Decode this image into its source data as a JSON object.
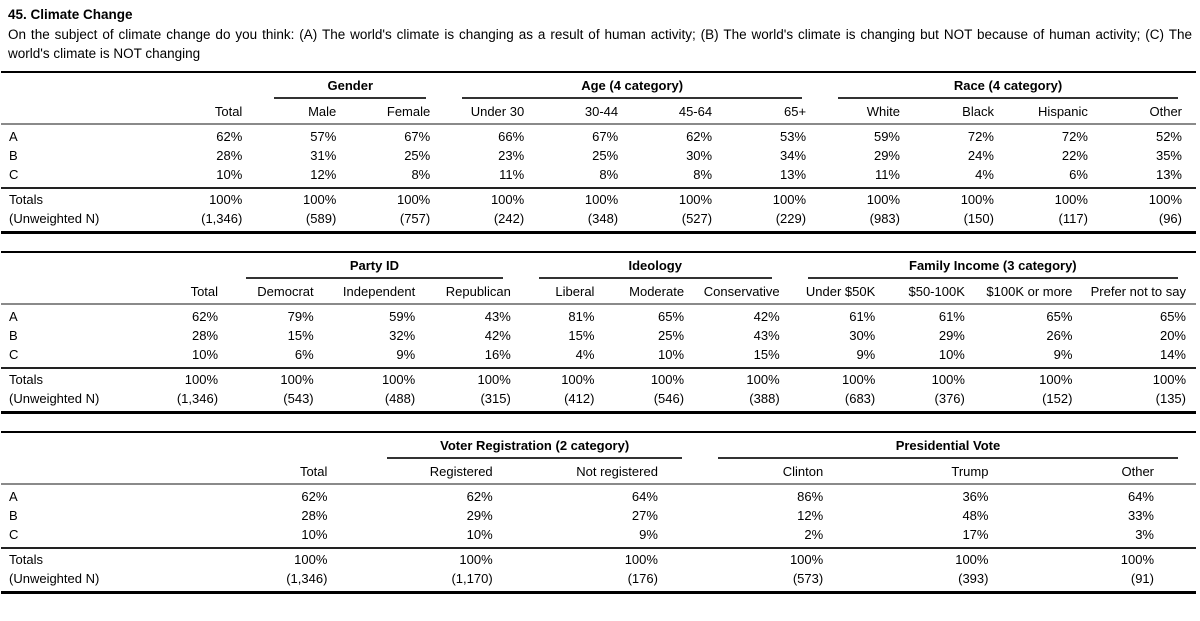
{
  "page": {
    "title": "45. Climate Change",
    "question": "On the subject of climate change do you think: (A) The world's climate is changing as a result of human activity; (B) The world's climate is changing but NOT because of human activity; (C) The world's climate is NOT changing"
  },
  "tables": [
    {
      "id": "demographics",
      "groups": [
        {
          "label": "",
          "span": 2
        },
        {
          "label": "Gender",
          "span": 2
        },
        {
          "label": "Age (4 category)",
          "span": 4
        },
        {
          "label": "Race (4 category)",
          "span": 4
        }
      ],
      "columns": [
        "",
        "Total",
        "Male",
        "Female",
        "Under 30",
        "30-44",
        "45-64",
        "65+",
        "White",
        "Black",
        "Hispanic",
        "Other"
      ],
      "rows": [
        {
          "label": "A",
          "values": [
            "62%",
            "57%",
            "67%",
            "66%",
            "67%",
            "62%",
            "53%",
            "59%",
            "72%",
            "72%",
            "52%"
          ]
        },
        {
          "label": "B",
          "values": [
            "28%",
            "31%",
            "25%",
            "23%",
            "25%",
            "30%",
            "34%",
            "29%",
            "24%",
            "22%",
            "35%"
          ]
        },
        {
          "label": "C",
          "values": [
            "10%",
            "12%",
            "8%",
            "11%",
            "8%",
            "8%",
            "13%",
            "11%",
            "4%",
            "6%",
            "13%"
          ]
        }
      ],
      "totals": {
        "label": "Totals",
        "values": [
          "100%",
          "100%",
          "100%",
          "100%",
          "100%",
          "100%",
          "100%",
          "100%",
          "100%",
          "100%",
          "100%"
        ]
      },
      "unweighted": {
        "label": "(Unweighted N)",
        "values": [
          "(1,346)",
          "(589)",
          "(757)",
          "(242)",
          "(348)",
          "(527)",
          "(229)",
          "(983)",
          "(150)",
          "(117)",
          "(96)"
        ]
      }
    },
    {
      "id": "politics",
      "groups": [
        {
          "label": "",
          "span": 2
        },
        {
          "label": "Party ID",
          "span": 3
        },
        {
          "label": "Ideology",
          "span": 3
        },
        {
          "label": "Family Income (3 category)",
          "span": 4
        }
      ],
      "columns": [
        "",
        "Total",
        "Democrat",
        "Independent",
        "Republican",
        "Liberal",
        "Moderate",
        "Conservative",
        "Under $50K",
        "$50-100K",
        "$100K or more",
        "Prefer not to say"
      ],
      "rows": [
        {
          "label": "A",
          "values": [
            "62%",
            "79%",
            "59%",
            "43%",
            "81%",
            "65%",
            "42%",
            "61%",
            "61%",
            "65%",
            "65%"
          ]
        },
        {
          "label": "B",
          "values": [
            "28%",
            "15%",
            "32%",
            "42%",
            "15%",
            "25%",
            "43%",
            "30%",
            "29%",
            "26%",
            "20%"
          ]
        },
        {
          "label": "C",
          "values": [
            "10%",
            "6%",
            "9%",
            "16%",
            "4%",
            "10%",
            "15%",
            "9%",
            "10%",
            "9%",
            "14%"
          ]
        }
      ],
      "totals": {
        "label": "Totals",
        "values": [
          "100%",
          "100%",
          "100%",
          "100%",
          "100%",
          "100%",
          "100%",
          "100%",
          "100%",
          "100%",
          "100%"
        ]
      },
      "unweighted": {
        "label": "(Unweighted N)",
        "values": [
          "(1,346)",
          "(543)",
          "(488)",
          "(315)",
          "(412)",
          "(546)",
          "(388)",
          "(683)",
          "(376)",
          "(152)",
          "(135)"
        ]
      }
    },
    {
      "id": "voting",
      "groups": [
        {
          "label": "",
          "span": 2
        },
        {
          "label": "Voter Registration (2 category)",
          "span": 2
        },
        {
          "label": "Presidential Vote",
          "span": 3
        }
      ],
      "columns": [
        "",
        "Total",
        "Registered",
        "Not registered",
        "Clinton",
        "Trump",
        "Other"
      ],
      "rows": [
        {
          "label": "A",
          "values": [
            "62%",
            "62%",
            "64%",
            "86%",
            "36%",
            "64%"
          ]
        },
        {
          "label": "B",
          "values": [
            "28%",
            "29%",
            "27%",
            "12%",
            "48%",
            "33%"
          ]
        },
        {
          "label": "C",
          "values": [
            "10%",
            "10%",
            "9%",
            "2%",
            "17%",
            "3%"
          ]
        }
      ],
      "totals": {
        "label": "Totals",
        "values": [
          "100%",
          "100%",
          "100%",
          "100%",
          "100%",
          "100%"
        ]
      },
      "unweighted": {
        "label": "(Unweighted N)",
        "values": [
          "(1,346)",
          "(1,170)",
          "(176)",
          "(573)",
          "(393)",
          "(91)"
        ]
      }
    }
  ]
}
